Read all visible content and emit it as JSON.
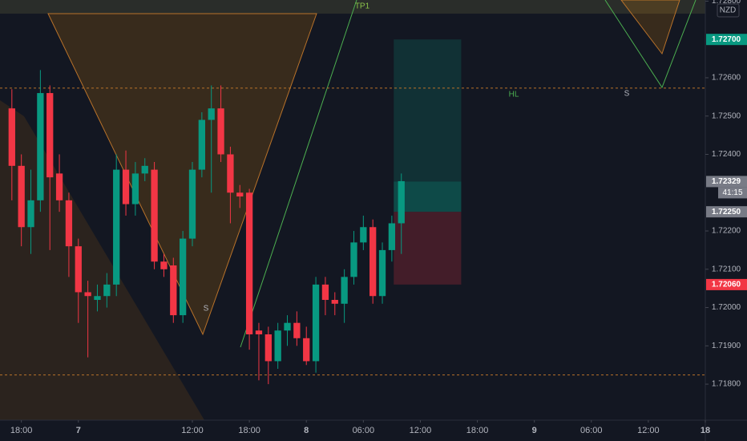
{
  "chart_data": {
    "type": "candlestick",
    "currency": "NZD",
    "x": [
      -7,
      -6,
      -5,
      -4,
      -3,
      -2,
      -1,
      0,
      1,
      2,
      3,
      4,
      5,
      6,
      7,
      8,
      9,
      10,
      11,
      12,
      13,
      14,
      15,
      16,
      17,
      18,
      19,
      20,
      21,
      22,
      23,
      24,
      25,
      26,
      27,
      28,
      29,
      30,
      31,
      32,
      33,
      34
    ],
    "open": [
      1.7252,
      1.7237,
      1.7221,
      1.7228,
      1.7256,
      1.7235,
      1.7228,
      1.7216,
      1.7204,
      1.7202,
      1.7203,
      1.7206,
      1.7236,
      1.7227,
      1.7235,
      1.7236,
      1.7212,
      1.7211,
      1.7198,
      1.7218,
      1.7236,
      1.7249,
      1.7252,
      1.724,
      1.723,
      1.723,
      1.7194,
      1.7193,
      1.7186,
      1.7194,
      1.7196,
      1.7192,
      1.7186,
      1.7206,
      1.7202,
      1.7201,
      1.7208,
      1.7217,
      1.7221,
      1.7203,
      1.7215,
      1.7222
    ],
    "high": [
      1.7257,
      1.724,
      1.7236,
      1.7262,
      1.7258,
      1.724,
      1.723,
      1.7218,
      1.7207,
      1.7206,
      1.7209,
      1.724,
      1.7241,
      1.7238,
      1.7239,
      1.7238,
      1.7214,
      1.7213,
      1.722,
      1.7238,
      1.7251,
      1.7258,
      1.7258,
      1.7242,
      1.7232,
      1.7231,
      1.7196,
      1.7195,
      1.7196,
      1.7198,
      1.7199,
      1.7195,
      1.7208,
      1.7208,
      1.7204,
      1.721,
      1.722,
      1.7224,
      1.7223,
      1.7217,
      1.7224,
      1.7235
    ],
    "low": [
      1.7228,
      1.7216,
      1.7214,
      1.7225,
      1.7215,
      1.7225,
      1.7208,
      1.7196,
      1.7187,
      1.7199,
      1.72,
      1.7203,
      1.7224,
      1.7224,
      1.7233,
      1.721,
      1.7208,
      1.7196,
      1.7196,
      1.7216,
      1.7234,
      1.723,
      1.7238,
      1.7222,
      1.7226,
      1.7189,
      1.7181,
      1.718,
      1.7184,
      1.719,
      1.719,
      1.7185,
      1.7183,
      1.7198,
      1.7198,
      1.7196,
      1.7206,
      1.7215,
      1.7201,
      1.7201,
      1.7212,
      1.7214
    ],
    "close": [
      1.7237,
      1.7221,
      1.7228,
      1.7256,
      1.7234,
      1.7228,
      1.7216,
      1.7204,
      1.7203,
      1.7203,
      1.7206,
      1.7236,
      1.7227,
      1.7235,
      1.7237,
      1.7212,
      1.721,
      1.7198,
      1.7218,
      1.7236,
      1.7249,
      1.7252,
      1.724,
      1.723,
      1.7229,
      1.7193,
      1.7193,
      1.7186,
      1.7194,
      1.7196,
      1.7192,
      1.7186,
      1.7206,
      1.7202,
      1.7201,
      1.7208,
      1.7217,
      1.7221,
      1.7203,
      1.7215,
      1.7222,
      1.7233
    ],
    "up_color": "#089981",
    "down_color": "#f23645",
    "xlim": [
      -8.25,
      66
    ],
    "xticks": [
      {
        "value": -6,
        "label": "18:00"
      },
      {
        "value": 0,
        "label": "7"
      },
      {
        "value": 12,
        "label": "12:00"
      },
      {
        "value": 18,
        "label": "18:00"
      },
      {
        "value": 24,
        "label": "8"
      },
      {
        "value": 30,
        "label": "06:00"
      },
      {
        "value": 36,
        "label": "12:00"
      },
      {
        "value": 42,
        "label": "18:00"
      },
      {
        "value": 48,
        "label": "9"
      },
      {
        "value": 54,
        "label": "06:00"
      },
      {
        "value": 60,
        "label": "12:00"
      },
      {
        "value": 66,
        "label": "18"
      }
    ],
    "ylim": [
      1.71706,
      1.72803
    ],
    "yticks": [
      {
        "value": 1.718,
        "label": "1.71800"
      },
      {
        "value": 1.719,
        "label": "1.71900"
      },
      {
        "value": 1.72,
        "label": "1.72000"
      },
      {
        "value": 1.721,
        "label": "1.72100"
      },
      {
        "value": 1.722,
        "label": "1.72200"
      },
      {
        "value": 1.724,
        "label": "1.72400"
      },
      {
        "value": 1.725,
        "label": "1.72500"
      },
      {
        "value": 1.726,
        "label": "1.72600"
      },
      {
        "value": 1.728,
        "label": "1.72800"
      }
    ],
    "price_labels": [
      {
        "value": 1.727,
        "label": "1.72700",
        "color": "#089981"
      },
      {
        "value": 1.72329,
        "label": "1.72329",
        "color": "#787b86"
      },
      {
        "value": 1.7225,
        "label": "1.72250",
        "color": "#787b86"
      },
      {
        "value": 1.7206,
        "label": "1.72060",
        "color": "#f23645"
      }
    ],
    "countdown": "41:15",
    "position": {
      "start": 33.2,
      "end": 40.3,
      "take_profit": 1.727,
      "current": 1.72329,
      "entry": 1.7225,
      "stop_loss": 1.7206
    },
    "levels": [
      1.72573,
      1.71824
    ],
    "annotations": [
      "TP1",
      "HL",
      "S",
      "S"
    ]
  }
}
